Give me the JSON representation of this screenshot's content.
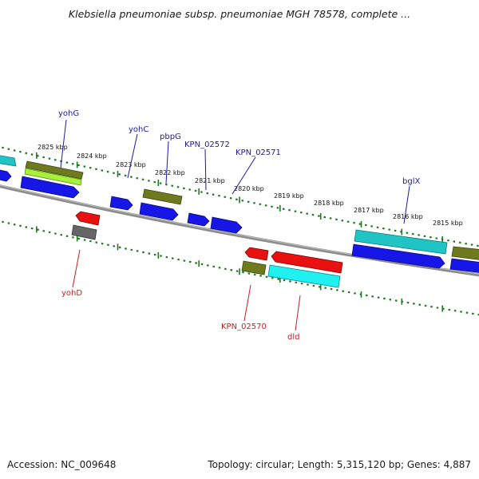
{
  "title": "Klebsiella pneumoniae subsp. pneumoniae MGH 78578, complete ...",
  "footer": {
    "accession": "Accession: NC_009648",
    "summary": "Topology: circular; Length: 5,315,120 bp; Genes: 4,887"
  },
  "colors": {
    "plus_label": "#1a1aa6",
    "minus_label": "#c81e1e",
    "tick": "#1f7a1f",
    "backbone": "#8c8c8c"
  },
  "scale_labels": [
    "2825 kbp",
    "2824 kbp",
    "2823 kbp",
    "2822 kbp",
    "2821 kbp",
    "2820 kbp",
    "2819 kbp",
    "2818 kbp",
    "2817 kbp",
    "2816 kbp",
    "2815 kbp"
  ],
  "gene_labels_plus": [
    "yohG",
    "yohC",
    "pbpG",
    "KPN_02572",
    "KPN_02571",
    "bglX"
  ],
  "gene_labels_minus": [
    "yohD",
    "KPN_02570",
    "dld"
  ]
}
